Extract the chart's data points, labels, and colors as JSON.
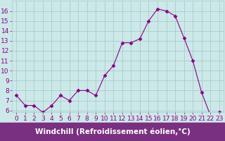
{
  "x": [
    0,
    1,
    2,
    3,
    4,
    5,
    6,
    7,
    8,
    9,
    10,
    11,
    12,
    13,
    14,
    15,
    16,
    17,
    18,
    19,
    20,
    21,
    22,
    23
  ],
  "y": [
    7.5,
    6.5,
    6.5,
    5.8,
    6.5,
    7.5,
    7.0,
    8.0,
    8.0,
    7.5,
    9.5,
    10.5,
    12.8,
    12.8,
    13.2,
    15.0,
    16.2,
    16.0,
    15.5,
    13.3,
    11.0,
    7.8,
    5.5,
    5.8
  ],
  "line_color": "#880088",
  "marker": "D",
  "marker_size": 2.5,
  "bg_color": "#cce8e8",
  "grid_color": "#aacccc",
  "xlabel": "Windchill (Refroidissement éolien,°C)",
  "xlabel_color": "white",
  "xlabel_bg": "#7a3080",
  "ylim": [
    6,
    17
  ],
  "xlim": [
    -0.5,
    23.5
  ],
  "yticks": [
    6,
    7,
    8,
    9,
    10,
    11,
    12,
    13,
    14,
    15,
    16
  ],
  "xticks": [
    0,
    1,
    2,
    3,
    4,
    5,
    6,
    7,
    8,
    9,
    10,
    11,
    12,
    13,
    14,
    15,
    16,
    17,
    18,
    19,
    20,
    21,
    22,
    23
  ],
  "tick_color": "#880088",
  "tick_label_fontsize": 6.5,
  "xlabel_fontsize": 7.5
}
